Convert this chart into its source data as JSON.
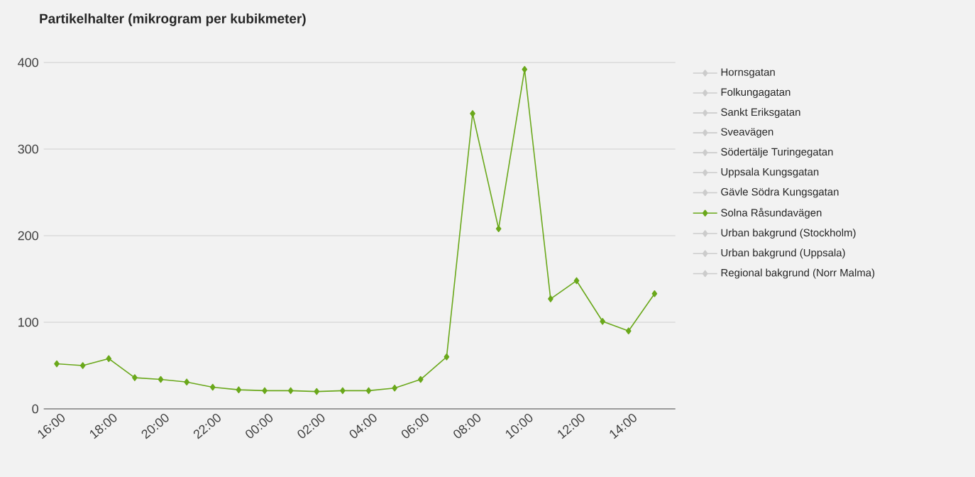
{
  "chart_data": {
    "type": "line",
    "title": "Partikelhalter (mikrogram per kubikmeter)",
    "categories": [
      "16:00",
      null,
      "18:00",
      null,
      "20:00",
      null,
      "22:00",
      null,
      "00:00",
      null,
      "02:00",
      null,
      "04:00",
      null,
      "06:00",
      null,
      "08:00",
      null,
      "10:00",
      null,
      "12:00",
      null,
      "14:00",
      null
    ],
    "series": [
      {
        "name": "Hornsgatan",
        "color": "#cccccc",
        "values": [
          null,
          null,
          null,
          null,
          null,
          null,
          null,
          null,
          null,
          null,
          null,
          null,
          null,
          null,
          null,
          null,
          null,
          null,
          null,
          null,
          null,
          null,
          null,
          null
        ]
      },
      {
        "name": "Folkungagatan",
        "color": "#cccccc",
        "values": [
          null,
          null,
          null,
          null,
          null,
          null,
          null,
          null,
          null,
          null,
          null,
          null,
          null,
          null,
          null,
          null,
          null,
          null,
          null,
          null,
          null,
          null,
          null,
          null
        ]
      },
      {
        "name": "Sankt Eriksgatan",
        "color": "#cccccc",
        "values": [
          null,
          null,
          null,
          null,
          null,
          null,
          null,
          null,
          null,
          null,
          null,
          null,
          null,
          null,
          null,
          null,
          null,
          null,
          null,
          null,
          null,
          null,
          null,
          null
        ]
      },
      {
        "name": "Sveavägen",
        "color": "#cccccc",
        "values": [
          null,
          null,
          null,
          null,
          null,
          null,
          null,
          null,
          null,
          null,
          null,
          null,
          null,
          null,
          null,
          null,
          null,
          null,
          null,
          null,
          null,
          null,
          null,
          null
        ]
      },
      {
        "name": "Södertälje Turingegatan",
        "color": "#cccccc",
        "values": [
          null,
          null,
          null,
          null,
          null,
          null,
          null,
          null,
          null,
          null,
          null,
          null,
          null,
          null,
          null,
          null,
          null,
          null,
          null,
          null,
          null,
          null,
          null,
          null
        ]
      },
      {
        "name": "Uppsala Kungsgatan",
        "color": "#cccccc",
        "values": [
          null,
          null,
          null,
          null,
          null,
          null,
          null,
          null,
          null,
          null,
          null,
          null,
          null,
          null,
          null,
          null,
          null,
          null,
          null,
          null,
          null,
          null,
          null,
          null
        ]
      },
      {
        "name": "Gävle Södra Kungsgatan",
        "color": "#cccccc",
        "values": [
          null,
          null,
          null,
          null,
          null,
          null,
          null,
          null,
          null,
          null,
          null,
          null,
          null,
          null,
          null,
          null,
          null,
          null,
          null,
          null,
          null,
          null,
          null,
          null
        ]
      },
      {
        "name": "Solna Råsundavägen",
        "color": "#6aa81b",
        "values": [
          52,
          50,
          58,
          36,
          34,
          31,
          25,
          22,
          21,
          21,
          20,
          21,
          21,
          24,
          34,
          60,
          341,
          208,
          392,
          127,
          148,
          101,
          90,
          133
        ]
      },
      {
        "name": "Urban bakgrund (Stockholm)",
        "color": "#cccccc",
        "values": [
          null,
          null,
          null,
          null,
          null,
          null,
          null,
          null,
          null,
          null,
          null,
          null,
          null,
          null,
          null,
          null,
          null,
          null,
          null,
          null,
          null,
          null,
          null,
          null
        ]
      },
      {
        "name": "Urban bakgrund (Uppsala)",
        "color": "#cccccc",
        "values": [
          null,
          null,
          null,
          null,
          null,
          null,
          null,
          null,
          null,
          null,
          null,
          null,
          null,
          null,
          null,
          null,
          null,
          null,
          null,
          null,
          null,
          null,
          null,
          null
        ]
      },
      {
        "name": "Regional bakgrund (Norr Malma)",
        "color": "#cccccc",
        "values": [
          null,
          null,
          null,
          null,
          null,
          null,
          null,
          null,
          null,
          null,
          null,
          null,
          null,
          null,
          null,
          null,
          null,
          null,
          null,
          null,
          null,
          null,
          null,
          null
        ]
      }
    ],
    "ylim": [
      0,
      400
    ],
    "yticks": [
      0,
      100,
      200,
      300,
      400
    ],
    "grid": "y",
    "legend": "right",
    "marker": "diamond",
    "line_style": "solid"
  }
}
